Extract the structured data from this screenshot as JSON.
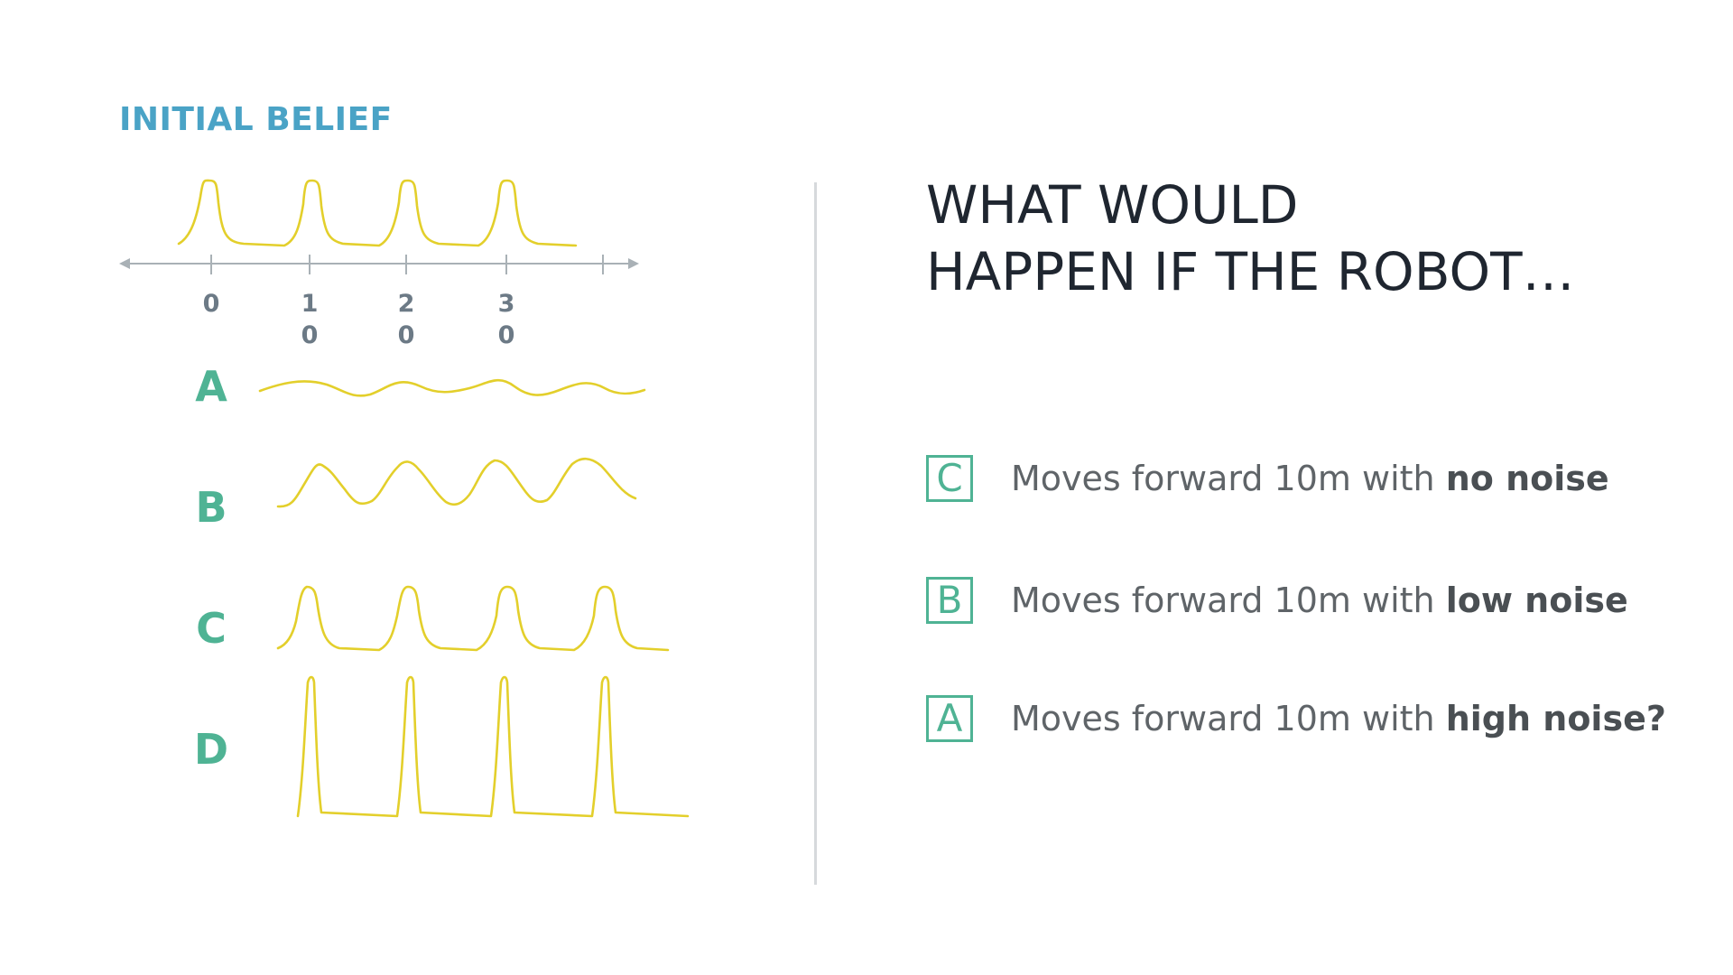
{
  "colors": {
    "title_blue": "#4aa3c6",
    "label_green": "#4fb394",
    "curve_yellow": "#e3cf2b",
    "axis_gray": "#a9b1b6",
    "tick_text": "#6c7a86"
  },
  "left_panel": {
    "title": "INITIAL BELIEF",
    "axis": {
      "tick_labels": [
        {
          "top": "0",
          "bottom": ""
        },
        {
          "top": "1",
          "bottom": "0"
        },
        {
          "top": "2",
          "bottom": "0"
        },
        {
          "top": "3",
          "bottom": "0"
        }
      ]
    },
    "rows": [
      {
        "label": "A",
        "shape": "flat-wave"
      },
      {
        "label": "B",
        "shape": "broad-peaks"
      },
      {
        "label": "C",
        "shape": "medium-peaks"
      },
      {
        "label": "D",
        "shape": "sharp-spikes"
      }
    ]
  },
  "right_panel": {
    "question_lines": [
      "WHAT WOULD",
      "HAPPEN IF THE ROBOT…"
    ],
    "answers": [
      {
        "box": "C",
        "text": "Moves forward 10m with ",
        "bold": "no noise"
      },
      {
        "box": "B",
        "text": "Moves forward 10m with ",
        "bold": "low noise"
      },
      {
        "box": "A",
        "text": "Moves forward 10m with ",
        "bold": "high noise?"
      }
    ]
  }
}
